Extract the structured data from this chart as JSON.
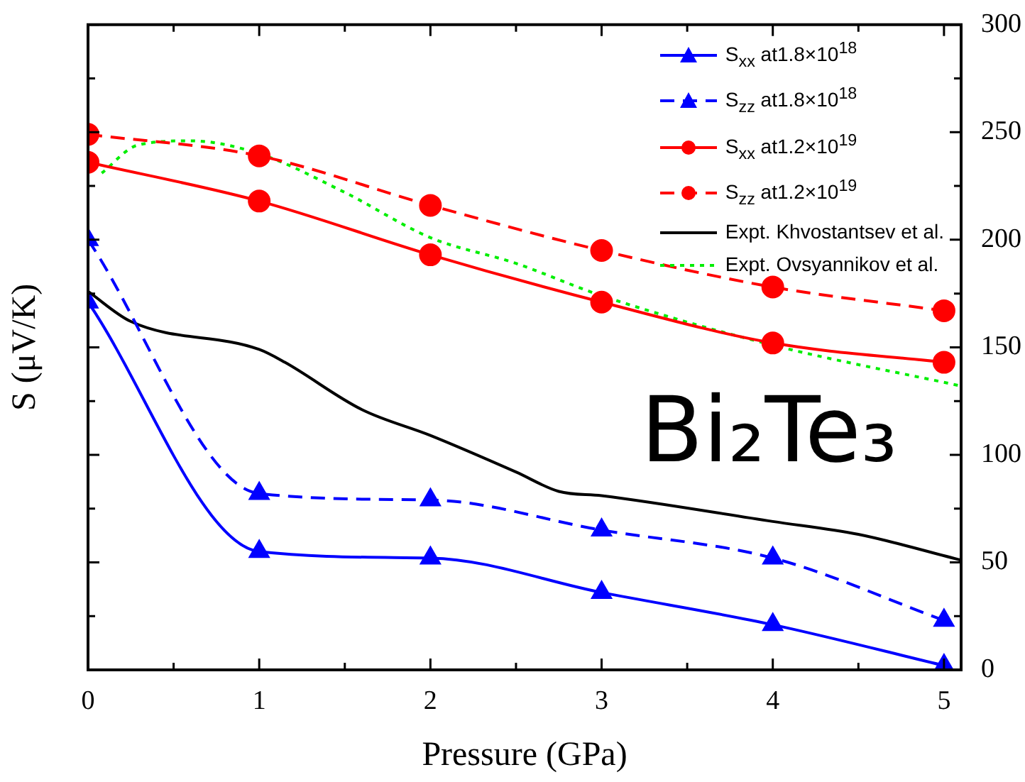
{
  "chart_data": {
    "type": "line",
    "xlabel": "Pressure (GPa)",
    "ylabel": "S (μV/K)",
    "xlim": [
      0,
      5.1
    ],
    "xticks": [
      0,
      {
        "value": 0.5,
        "label": null
      },
      1,
      {
        "value": 1.5,
        "label": null
      },
      2,
      {
        "value": 2.5,
        "label": null
      },
      3,
      {
        "value": 3.5,
        "label": null
      },
      4,
      {
        "value": 4.5,
        "label": null
      },
      5
    ],
    "y2lim": [
      0,
      300
    ],
    "y2ticks": [
      0,
      {
        "value": 25,
        "label": null
      },
      50,
      {
        "value": 75,
        "label": null
      },
      100,
      {
        "value": 125,
        "label": null
      },
      150,
      {
        "value": 175,
        "label": null
      },
      200,
      {
        "value": 225,
        "label": null
      },
      250,
      {
        "value": 275,
        "label": null
      },
      300
    ],
    "legend": "top right",
    "grid": false,
    "annotations": [
      "Bi₂Te₃"
    ],
    "series": [
      {
        "name": "S$_{xx}$ at1.8×10$^{18}$",
        "color": "#0000ff",
        "axis": "y2",
        "marker": "triangle",
        "line_style": "solid",
        "x": [
          0,
          1,
          2,
          3,
          4,
          5
        ],
        "values": [
          171,
          55,
          52,
          36,
          21,
          2
        ]
      },
      {
        "name": "S$_{zz}$ at1.8×10$^{18}$",
        "color": "#0000ff",
        "axis": "y2",
        "marker": "triangle",
        "line_style": "dashed",
        "x": [
          0,
          1,
          2,
          3,
          4,
          5
        ],
        "values": [
          200,
          82,
          79,
          65,
          52,
          23
        ]
      },
      {
        "name": "S$_{xx}$ at1.2×10$^{19}$",
        "color": "#ff0000",
        "axis": "y2",
        "marker": "circle",
        "line_style": "solid",
        "x": [
          0,
          1,
          2,
          3,
          4,
          5
        ],
        "values": [
          236,
          218,
          193,
          171,
          152,
          143
        ]
      },
      {
        "name": "S$_{zz}$ at1.2×10$^{19}$",
        "color": "#ff0000",
        "axis": "y2",
        "marker": "circle",
        "line_style": "dashed",
        "x": [
          0,
          1,
          2,
          3,
          4,
          5
        ],
        "values": [
          249,
          239,
          216,
          195,
          178,
          167
        ]
      },
      {
        "name": "Expt. Khvostantsev et al.",
        "color": "#000000",
        "axis": "y2",
        "marker": "none",
        "line_style": "solid",
        "x": [
          0,
          0.25,
          1,
          1.15,
          1.6,
          2,
          2.5,
          2.75,
          3,
          4,
          4.5,
          5.1
        ],
        "values": [
          176,
          162,
          149,
          143,
          121,
          109,
          92,
          83,
          81,
          69,
          63,
          51
        ]
      },
      {
        "name": "Expt. Ovsyannikov et al.",
        "color": "#00ee00",
        "axis": "y2",
        "marker": "none",
        "line_style": "dotted",
        "x": [
          0.08,
          0.29,
          0.6,
          1,
          1.5,
          2,
          2.5,
          3,
          4,
          5.1
        ],
        "values": [
          231,
          244,
          246,
          240,
          222,
          201,
          189,
          174,
          151,
          132
        ]
      }
    ]
  }
}
